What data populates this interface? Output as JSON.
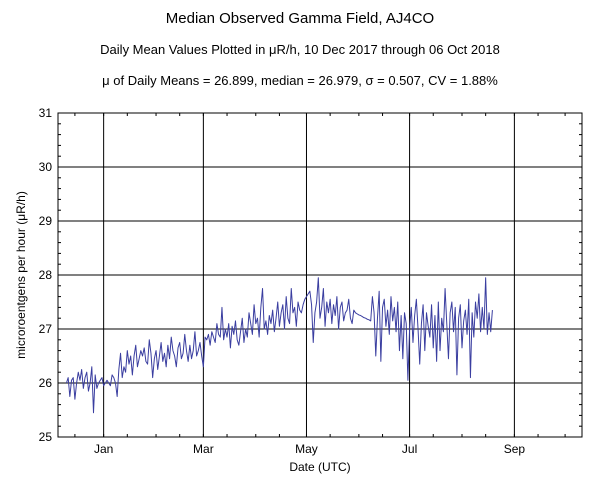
{
  "chart_data": {
    "type": "line",
    "title": "Median Observed Gamma Field, AJ4CO",
    "subtitle": "Daily Mean Values Plotted in μR/h, 10 Dec 2017 through 06 Oct 2018",
    "stats_line": "μ of Daily Means = 26.899,   median = 26.979,   σ = 0.507,   CV = 1.88%",
    "xlabel": "Date (UTC)",
    "ylabel": "microroentgens per hour (μR/h)",
    "ylim": [
      25,
      31
    ],
    "yticks": [
      "25",
      "26",
      "27",
      "28",
      "29",
      "30",
      "31"
    ],
    "xlim": [
      "2017-12-05",
      "2018-10-11"
    ],
    "xticks": [
      {
        "label": "Jan",
        "date": "2018-01-01"
      },
      {
        "label": "Mar",
        "date": "2018-03-01"
      },
      {
        "label": "May",
        "date": "2018-05-01"
      },
      {
        "label": "Jul",
        "date": "2018-07-01"
      },
      {
        "label": "Sep",
        "date": "2018-09-01"
      }
    ],
    "grid": true,
    "line_color": "#3a3ea0",
    "series": [
      {
        "start_date": "2017-12-10",
        "values": [
          26.0,
          26.1,
          25.75,
          26.05,
          26.1,
          25.7,
          26.0,
          26.2,
          26.05,
          26.25,
          25.9,
          26.1,
          26.2,
          25.85,
          26.0,
          26.3,
          25.45,
          26.15,
          25.9,
          26.0,
          26.05,
          26.1,
          25.95,
          26.0,
          26.05,
          26.0,
          25.95,
          26.15,
          26.1,
          26.0,
          25.75,
          26.25,
          26.55,
          26.1,
          26.3,
          26.2,
          26.6,
          26.35,
          26.5,
          26.15,
          26.5,
          26.7,
          26.3,
          26.45,
          26.6,
          26.5,
          26.65,
          26.4,
          26.35,
          26.8,
          26.55,
          26.1,
          26.45,
          26.6,
          26.25,
          26.5,
          26.75,
          26.4,
          26.55,
          26.3,
          26.7,
          26.45,
          26.85,
          26.6,
          26.5,
          26.3,
          26.65,
          26.75,
          26.45,
          26.55,
          26.9,
          26.6,
          26.4,
          26.7,
          26.45,
          26.6,
          26.95,
          26.5,
          26.6,
          26.75,
          26.5,
          26.3,
          26.85,
          26.8,
          26.9,
          26.7,
          26.95,
          26.85,
          26.75,
          27.1,
          26.9,
          26.85,
          27.4,
          26.8,
          27.0,
          26.85,
          27.1,
          26.65,
          27.05,
          26.9,
          27.15,
          26.8,
          26.7,
          26.95,
          27.2,
          26.75,
          27.0,
          26.85,
          27.3,
          27.1,
          26.9,
          27.45,
          27.1,
          27.2,
          26.85,
          27.4,
          27.75,
          27.0,
          27.15,
          26.9,
          27.25,
          27.1,
          27.35,
          26.95,
          27.2,
          27.5,
          27.05,
          27.3,
          27.45,
          27.0,
          27.6,
          27.2,
          27.1,
          27.75,
          27.3,
          27.4,
          27.05,
          27.5,
          27.35,
          27.3,
          27.45,
          27.55,
          27.6,
          27.65,
          27.7,
          27.45,
          26.75,
          27.3,
          27.5,
          27.95,
          27.2,
          27.4,
          27.75,
          27.05,
          27.5,
          27.3,
          27.55,
          27.1,
          27.45,
          27.25,
          27.6,
          27.0,
          27.4,
          27.5,
          27.15,
          27.3,
          27.35,
          27.55,
          27.2,
          27.1,
          27.35,
          27.3,
          27.28,
          27.26,
          27.25,
          27.23,
          27.21,
          27.2,
          27.18,
          27.17,
          27.15,
          27.6,
          27.3,
          26.5,
          27.2,
          27.7,
          26.4,
          27.4,
          27.55,
          27.05,
          27.35,
          26.9,
          27.6,
          27.15,
          27.4,
          26.95,
          27.5,
          26.6,
          27.25,
          26.45,
          27.3,
          27.1,
          26.05,
          27.0,
          27.4,
          26.75,
          27.25,
          27.55,
          27.0,
          26.35,
          27.1,
          27.45,
          26.6,
          27.3,
          27.05,
          26.85,
          27.45,
          26.65,
          27.25,
          26.4,
          27.5,
          26.6,
          27.2,
          26.95,
          27.75,
          27.1,
          26.45,
          27.3,
          27.5,
          26.95,
          27.4,
          26.15,
          27.2,
          27.45,
          26.65,
          27.15,
          27.35,
          26.9,
          27.55,
          26.1,
          27.3,
          26.85,
          27.5,
          27.2,
          27.65,
          26.95,
          27.4,
          27.0,
          27.95,
          26.9,
          27.3,
          26.95,
          27.35
        ]
      }
    ]
  }
}
